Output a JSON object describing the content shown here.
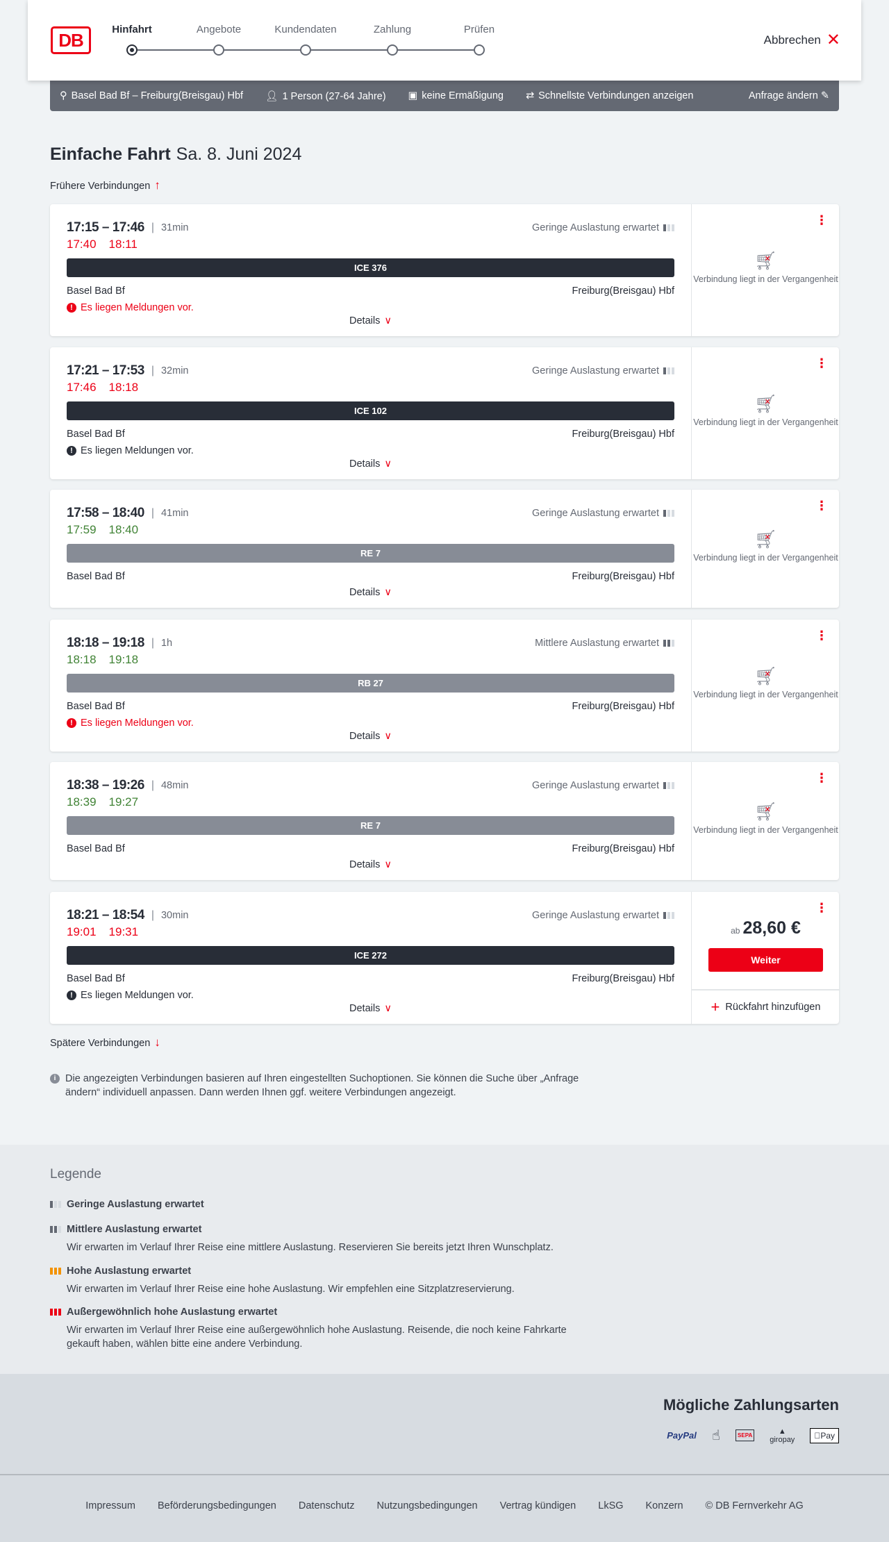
{
  "colors": {
    "accent": "#ec0016",
    "delay_late": "#ec0016",
    "delay_ontime": "#408335",
    "ice_bar": "#282d37",
    "regional_bar": "#878c96"
  },
  "header": {
    "logo": "DB",
    "steps": [
      {
        "label": "Hinfahrt",
        "active": true
      },
      {
        "label": "Angebote"
      },
      {
        "label": "Kundendaten"
      },
      {
        "label": "Zahlung"
      },
      {
        "label": "Prüfen"
      }
    ],
    "cancel": "Abbrechen"
  },
  "search": {
    "route": "Basel Bad Bf – Freiburg(Breisgau) Hbf",
    "persons": "1 Person (27-64 Jahre)",
    "discount": "keine Ermäßigung",
    "fastest": "Schnellste Verbindungen anzeigen",
    "edit": "Anfrage ändern"
  },
  "title": {
    "main": "Einfache Fahrt",
    "date": "Sa. 8. Juni 2024"
  },
  "earlier": "Frühere Verbindungen",
  "later": "Spätere Verbindungen",
  "connections": [
    {
      "times": "17:15 – 17:46",
      "duration": "31min",
      "load": "Geringe Auslastung erwartet",
      "load_level": 1,
      "rt_dep": "17:40",
      "rt_arr": "18:11",
      "rt_status": "late",
      "train": "ICE 376",
      "train_type": "ice",
      "from": "Basel Bad Bf",
      "to": "Freiburg(Breisgau) Hbf",
      "message": "Es liegen Meldungen vor.",
      "message_color": "red",
      "details": "Details",
      "past": "Verbindung liegt in der Vergangenheit"
    },
    {
      "times": "17:21 – 17:53",
      "duration": "32min",
      "load": "Geringe Auslastung erwartet",
      "load_level": 1,
      "rt_dep": "17:46",
      "rt_arr": "18:18",
      "rt_status": "late",
      "train": "ICE 102",
      "train_type": "ice",
      "from": "Basel Bad Bf",
      "to": "Freiburg(Breisgau) Hbf",
      "message": "Es liegen Meldungen vor.",
      "message_color": "black",
      "details": "Details",
      "past": "Verbindung liegt in der Vergangenheit"
    },
    {
      "times": "17:58 – 18:40",
      "duration": "41min",
      "load": "Geringe Auslastung erwartet",
      "load_level": 1,
      "rt_dep": "17:59",
      "rt_arr": "18:40",
      "rt_status": "ontime",
      "train": "RE 7",
      "train_type": "regional",
      "from": "Basel Bad Bf",
      "to": "Freiburg(Breisgau) Hbf",
      "details": "Details",
      "past": "Verbindung liegt in der Vergangenheit"
    },
    {
      "times": "18:18 – 19:18",
      "duration": "1h",
      "load": "Mittlere Auslastung erwartet",
      "load_level": 2,
      "rt_dep": "18:18",
      "rt_arr": "19:18",
      "rt_status": "ontime",
      "train": "RB 27",
      "train_type": "regional",
      "from": "Basel Bad Bf",
      "to": "Freiburg(Breisgau) Hbf",
      "message": "Es liegen Meldungen vor.",
      "message_color": "red",
      "details": "Details",
      "past": "Verbindung liegt in der Vergangenheit"
    },
    {
      "times": "18:38 – 19:26",
      "duration": "48min",
      "load": "Geringe Auslastung erwartet",
      "load_level": 1,
      "rt_dep": "18:39",
      "rt_arr": "19:27",
      "rt_status": "ontime",
      "train": "RE 7",
      "train_type": "regional",
      "from": "Basel Bad Bf",
      "to": "Freiburg(Breisgau) Hbf",
      "details": "Details",
      "past": "Verbindung liegt in der Vergangenheit"
    },
    {
      "times": "18:21 – 18:54",
      "duration": "30min",
      "load": "Geringe Auslastung erwartet",
      "load_level": 1,
      "rt_dep": "19:01",
      "rt_arr": "19:31",
      "rt_status": "late",
      "train": "ICE 272",
      "train_type": "ice",
      "from": "Basel Bad Bf",
      "to": "Freiburg(Breisgau) Hbf",
      "message": "Es liegen Meldungen vor.",
      "message_color": "black",
      "details": "Details",
      "price_prefix": "ab",
      "price": "28,60 €",
      "button": "Weiter",
      "return": "Rückfahrt hinzufügen"
    }
  ],
  "info": "Die angezeigten Verbindungen basieren auf Ihren eingestellten Suchoptionen. Sie können die Suche über „Anfrage ändern“ individuell anpassen. Dann werden Ihnen ggf. weitere Verbindungen angezeigt.",
  "legend": {
    "title": "Legende",
    "items": [
      {
        "title": "Geringe Auslastung erwartet",
        "level": 1
      },
      {
        "title": "Mittlere Auslastung erwartet",
        "desc": "Wir erwarten im Verlauf Ihrer Reise eine mittlere Auslastung. Reservieren Sie bereits jetzt Ihren Wunschplatz.",
        "level": 2
      },
      {
        "title": "Hohe Auslastung erwartet",
        "desc": "Wir erwarten im Verlauf Ihrer Reise eine hohe Auslastung. Wir empfehlen eine Sitzplatzreservierung.",
        "level": 3,
        "color": "#f39200"
      },
      {
        "title": "Außergewöhnlich hohe Auslastung erwartet",
        "desc": "Wir erwarten im Verlauf Ihrer Reise eine außergewöhnlich hohe Auslastung. Reisende, die noch keine Fahrkarte gekauft haben, wählen bitte eine andere Verbindung.",
        "level": 4,
        "color": "#ec0016"
      }
    ]
  },
  "footer": {
    "payment_title": "Mögliche Zahlungsarten",
    "payments": [
      "PayPal",
      "credit-card-icon",
      "SEPA",
      "giropay",
      "Pay"
    ],
    "links": [
      "Impressum",
      "Beförderungsbedingungen",
      "Datenschutz",
      "Nutzungsbedingungen",
      "Vertrag kündigen",
      "LkSG",
      "Konzern",
      "© DB Fernverkehr AG"
    ]
  }
}
